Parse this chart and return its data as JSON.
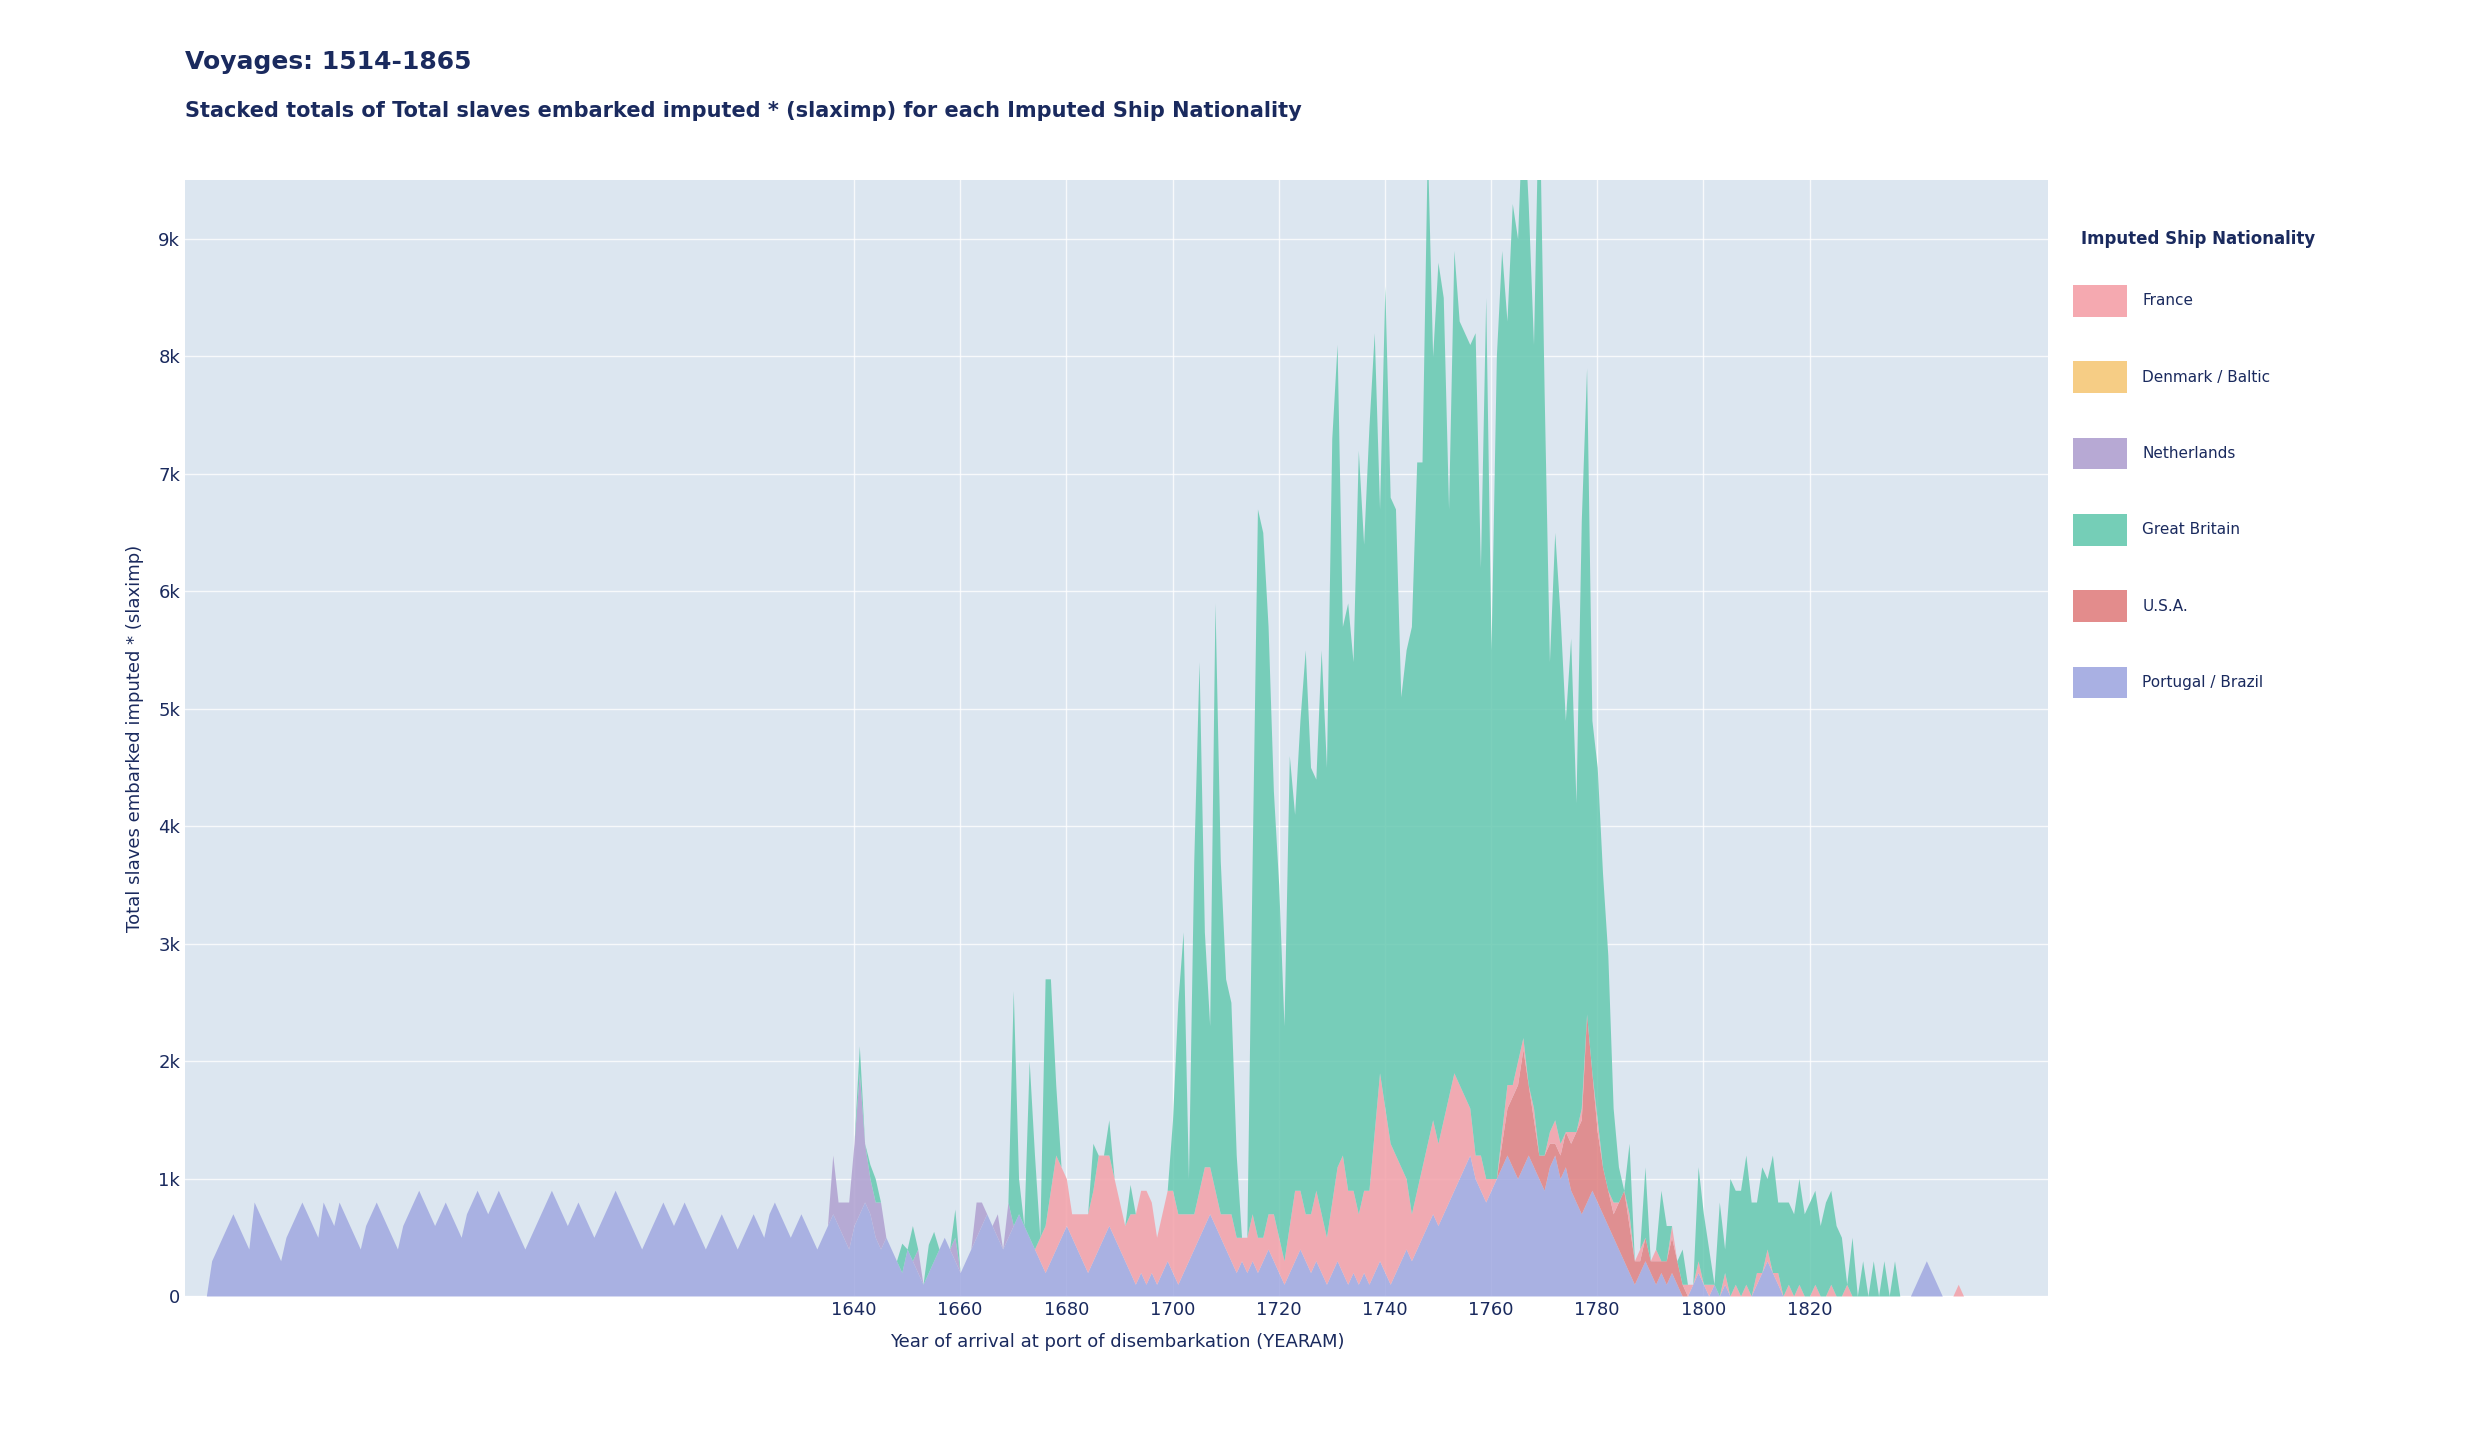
{
  "title_line1": "Voyages: 1514-1865",
  "title_line2": "Stacked totals of Total slaves embarked imputed * (slaximp) for each Imputed Ship Nationality",
  "xlabel": "Year of arrival at port of disembarkation (YEARAM)",
  "ylabel": "Total slaves embarked imputed * (slaximp)",
  "title_color": "#1a2a5e",
  "title_fontsize": 18,
  "subtitle_fontsize": 15,
  "background_color": "#dce6f0",
  "plot_bg_color": "#dce6f0",
  "outer_bg_color": "#ffffff",
  "legend_title": "Imputed Ship Nationality",
  "legend_entries": [
    "France",
    "Denmark / Baltic",
    "Netherlands",
    "Great Britain",
    "U.S.A.",
    "Portugal / Brazil"
  ],
  "legend_colors": [
    "#f4a0a8",
    "#f5c878",
    "#b0a0d0",
    "#66c9b0",
    "#e08080",
    "#a0a8e0"
  ],
  "series_order": [
    "Portugal / Brazil",
    "U.S.A.",
    "Netherlands",
    "Denmark / Baltic",
    "France",
    "Great Britain"
  ],
  "series_colors": {
    "France": "#f4a0a8",
    "Denmark / Baltic": "#f5c878",
    "Netherlands": "#b0a0d0",
    "Great Britain": "#66c9b0",
    "U.S.A.": "#e08080",
    "Portugal / Brazil": "#a0a8e0"
  },
  "xlim": [
    1514,
    1865
  ],
  "ylim": [
    0,
    9500
  ],
  "yticks": [
    0,
    1000,
    2000,
    3000,
    4000,
    5000,
    6000,
    7000,
    8000,
    9000
  ],
  "ytick_labels": [
    "0",
    "1k",
    "2k",
    "3k",
    "4k",
    "5k",
    "6k",
    "7k",
    "8k",
    "9k"
  ],
  "xticks": [
    1640,
    1660,
    1680,
    1700,
    1720,
    1740,
    1760,
    1780,
    1800,
    1820
  ],
  "grid_color": "#ffffff",
  "grid_alpha": 0.8,
  "alpha": 0.85
}
